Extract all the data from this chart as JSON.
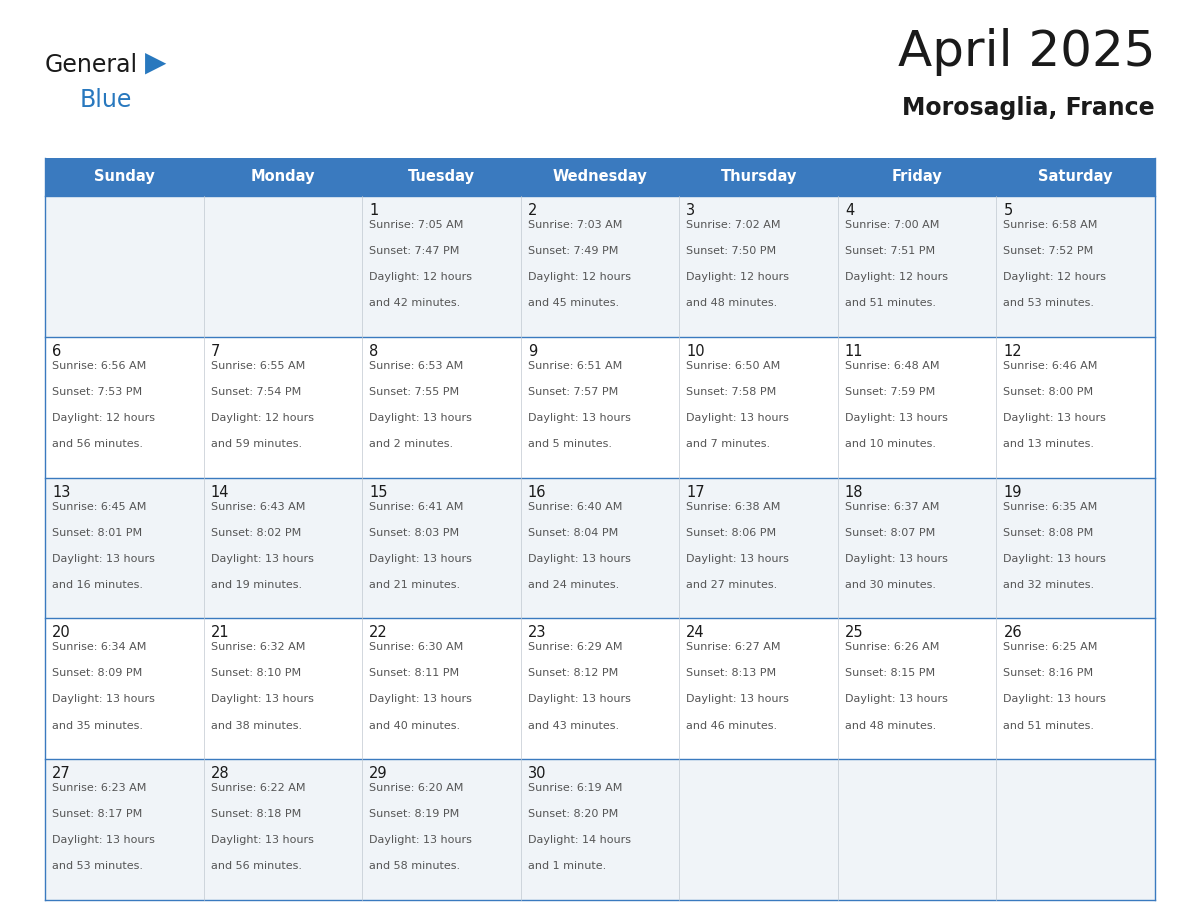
{
  "title": "April 2025",
  "subtitle": "Morosaglia, France",
  "days_of_week": [
    "Sunday",
    "Monday",
    "Tuesday",
    "Wednesday",
    "Thursday",
    "Friday",
    "Saturday"
  ],
  "header_bg": "#3a7abf",
  "header_text": "#ffffff",
  "row_bg_light": "#f0f4f8",
  "row_bg_white": "#ffffff",
  "cell_border_color": "#3a7abf",
  "title_color": "#1a1a1a",
  "subtitle_color": "#1a1a1a",
  "day_number_color": "#1a1a1a",
  "info_color": "#555555",
  "calendar_data": [
    [
      null,
      null,
      {
        "day": 1,
        "sunrise": "7:05 AM",
        "sunset": "7:47 PM",
        "daylight": "12 hours and 42 minutes"
      },
      {
        "day": 2,
        "sunrise": "7:03 AM",
        "sunset": "7:49 PM",
        "daylight": "12 hours and 45 minutes"
      },
      {
        "day": 3,
        "sunrise": "7:02 AM",
        "sunset": "7:50 PM",
        "daylight": "12 hours and 48 minutes"
      },
      {
        "day": 4,
        "sunrise": "7:00 AM",
        "sunset": "7:51 PM",
        "daylight": "12 hours and 51 minutes"
      },
      {
        "day": 5,
        "sunrise": "6:58 AM",
        "sunset": "7:52 PM",
        "daylight": "12 hours and 53 minutes"
      }
    ],
    [
      {
        "day": 6,
        "sunrise": "6:56 AM",
        "sunset": "7:53 PM",
        "daylight": "12 hours and 56 minutes"
      },
      {
        "day": 7,
        "sunrise": "6:55 AM",
        "sunset": "7:54 PM",
        "daylight": "12 hours and 59 minutes"
      },
      {
        "day": 8,
        "sunrise": "6:53 AM",
        "sunset": "7:55 PM",
        "daylight": "13 hours and 2 minutes"
      },
      {
        "day": 9,
        "sunrise": "6:51 AM",
        "sunset": "7:57 PM",
        "daylight": "13 hours and 5 minutes"
      },
      {
        "day": 10,
        "sunrise": "6:50 AM",
        "sunset": "7:58 PM",
        "daylight": "13 hours and 7 minutes"
      },
      {
        "day": 11,
        "sunrise": "6:48 AM",
        "sunset": "7:59 PM",
        "daylight": "13 hours and 10 minutes"
      },
      {
        "day": 12,
        "sunrise": "6:46 AM",
        "sunset": "8:00 PM",
        "daylight": "13 hours and 13 minutes"
      }
    ],
    [
      {
        "day": 13,
        "sunrise": "6:45 AM",
        "sunset": "8:01 PM",
        "daylight": "13 hours and 16 minutes"
      },
      {
        "day": 14,
        "sunrise": "6:43 AM",
        "sunset": "8:02 PM",
        "daylight": "13 hours and 19 minutes"
      },
      {
        "day": 15,
        "sunrise": "6:41 AM",
        "sunset": "8:03 PM",
        "daylight": "13 hours and 21 minutes"
      },
      {
        "day": 16,
        "sunrise": "6:40 AM",
        "sunset": "8:04 PM",
        "daylight": "13 hours and 24 minutes"
      },
      {
        "day": 17,
        "sunrise": "6:38 AM",
        "sunset": "8:06 PM",
        "daylight": "13 hours and 27 minutes"
      },
      {
        "day": 18,
        "sunrise": "6:37 AM",
        "sunset": "8:07 PM",
        "daylight": "13 hours and 30 minutes"
      },
      {
        "day": 19,
        "sunrise": "6:35 AM",
        "sunset": "8:08 PM",
        "daylight": "13 hours and 32 minutes"
      }
    ],
    [
      {
        "day": 20,
        "sunrise": "6:34 AM",
        "sunset": "8:09 PM",
        "daylight": "13 hours and 35 minutes"
      },
      {
        "day": 21,
        "sunrise": "6:32 AM",
        "sunset": "8:10 PM",
        "daylight": "13 hours and 38 minutes"
      },
      {
        "day": 22,
        "sunrise": "6:30 AM",
        "sunset": "8:11 PM",
        "daylight": "13 hours and 40 minutes"
      },
      {
        "day": 23,
        "sunrise": "6:29 AM",
        "sunset": "8:12 PM",
        "daylight": "13 hours and 43 minutes"
      },
      {
        "day": 24,
        "sunrise": "6:27 AM",
        "sunset": "8:13 PM",
        "daylight": "13 hours and 46 minutes"
      },
      {
        "day": 25,
        "sunrise": "6:26 AM",
        "sunset": "8:15 PM",
        "daylight": "13 hours and 48 minutes"
      },
      {
        "day": 26,
        "sunrise": "6:25 AM",
        "sunset": "8:16 PM",
        "daylight": "13 hours and 51 minutes"
      }
    ],
    [
      {
        "day": 27,
        "sunrise": "6:23 AM",
        "sunset": "8:17 PM",
        "daylight": "13 hours and 53 minutes"
      },
      {
        "day": 28,
        "sunrise": "6:22 AM",
        "sunset": "8:18 PM",
        "daylight": "13 hours and 56 minutes"
      },
      {
        "day": 29,
        "sunrise": "6:20 AM",
        "sunset": "8:19 PM",
        "daylight": "13 hours and 58 minutes"
      },
      {
        "day": 30,
        "sunrise": "6:19 AM",
        "sunset": "8:20 PM",
        "daylight": "14 hours and 1 minute"
      },
      null,
      null,
      null
    ]
  ],
  "logo_text_color": "#1a1a1a",
  "logo_blue_color": "#2878be"
}
